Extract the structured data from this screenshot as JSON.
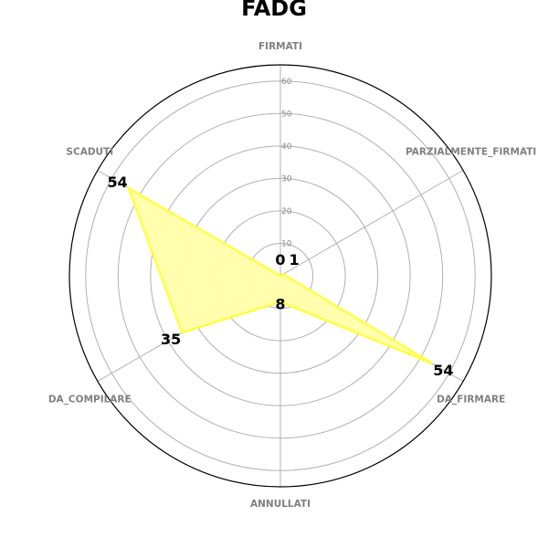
{
  "chart_data": {
    "type": "radar",
    "title": "FADG",
    "categories": [
      "FIRMATI",
      "PARZIALMENTE_FIRMATI",
      "DA_FIRMARE",
      "ANNULLATI",
      "DA_COMPILARE",
      "SCADUTI"
    ],
    "values": [
      0,
      1,
      54,
      8,
      35,
      54
    ],
    "rlim": [
      0,
      65
    ],
    "rticks": [
      10,
      20,
      30,
      40,
      50,
      60
    ],
    "grid": true,
    "colors": {
      "fill": "#ffffaa",
      "line": "#ffff44",
      "grid": "#b0b0b0",
      "frame": "#000000"
    }
  }
}
